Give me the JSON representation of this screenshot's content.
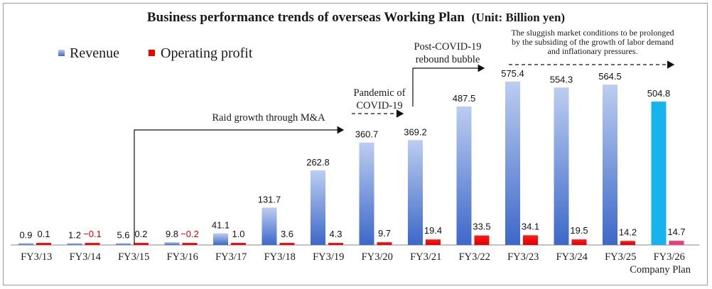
{
  "chart_data": {
    "type": "bar",
    "title": "Business performance trends of overseas Working Plan",
    "title_unit": "(Unit: Billion yen)",
    "categories": [
      "FY3/13",
      "FY3/14",
      "FY3/15",
      "FY3/16",
      "FY3/17",
      "FY3/18",
      "FY3/19",
      "FY3/20",
      "FY3/21",
      "FY3/22",
      "FY3/23",
      "FY3/24",
      "FY3/25",
      "FY3/26"
    ],
    "category_subtitle": {
      "index": 13,
      "text": "Company Plan"
    },
    "series": [
      {
        "name": "Revenue",
        "color": "#4a74d0",
        "values": [
          0.9,
          1.2,
          5.6,
          9.8,
          41.1,
          131.7,
          262.8,
          360.7,
          369.2,
          487.5,
          575.4,
          554.3,
          564.5,
          504.8
        ],
        "labels": [
          "0.9",
          "1.2",
          "5.6",
          "9.8",
          "41.1",
          "131.7",
          "262.8",
          "360.7",
          "369.2",
          "487.5",
          "575.4",
          "554.3",
          "564.5",
          "504.8"
        ]
      },
      {
        "name": "Operating profit",
        "color": "#ee0000",
        "values": [
          0.1,
          -0.1,
          0.2,
          -0.2,
          1.0,
          3.6,
          4.3,
          9.7,
          19.4,
          33.5,
          34.1,
          19.5,
          14.2,
          14.7
        ],
        "labels": [
          "0.1",
          "−0.1",
          "0.2",
          "−0.2",
          "1.0",
          "3.6",
          "4.3",
          "9.7",
          "19.4",
          "33.5",
          "34.1",
          "19.5",
          "14.2",
          "14.7"
        ]
      }
    ],
    "plan_colors": {
      "revenue": "#17b3ee",
      "profit": "#ee3b7a"
    },
    "ylim": [
      0,
      600
    ],
    "legend_position": "top-left",
    "annotations": [
      {
        "id": "mna",
        "lines": [
          "Raid growth through M&A"
        ]
      },
      {
        "id": "covid",
        "lines": [
          "Pandemic of",
          "COVID-19"
        ]
      },
      {
        "id": "rebound",
        "lines": [
          "Post-COVID-19",
          "rebound bubble"
        ]
      },
      {
        "id": "sluggish",
        "lines": [
          "The sluggish market conditions to be prolonged",
          "by the subsiding of the growth of labor demand",
          "and inflationary pressures."
        ]
      }
    ]
  }
}
